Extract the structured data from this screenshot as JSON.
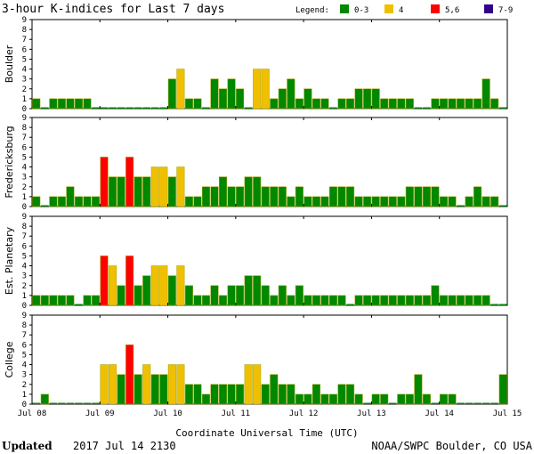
{
  "header": {
    "title": "3-hour K-indices for Last 7 days",
    "legend_title": "Legend:",
    "legend": [
      {
        "label": "0-3",
        "color": "#008800"
      },
      {
        "label": "4",
        "color": "#f0c000"
      },
      {
        "label": "5,6",
        "color": "#ff0000"
      },
      {
        "label": "7-9",
        "color": "#330088"
      }
    ]
  },
  "footer": {
    "updated_label": "Updated",
    "updated_value": "2017 Jul 14 2130",
    "credit": "NOAA/SWPC Boulder, CO USA"
  },
  "chart_data": {
    "type": "bar",
    "xlabel": "Coordinate Universal Time (UTC)",
    "x_ticks": [
      "Jul 08",
      "Jul 09",
      "Jul 10",
      "Jul 11",
      "Jul 12",
      "Jul 13",
      "Jul 14",
      "Jul 15"
    ],
    "y_ticks": [
      "0",
      "1",
      "2",
      "3",
      "4",
      "5",
      "6",
      "7",
      "8",
      "9"
    ],
    "ylim": [
      0,
      9
    ],
    "bins_per_day": 8,
    "color_scale": [
      {
        "range": "0-3",
        "color": "#008800"
      },
      {
        "range": "4",
        "color": "#f0c000"
      },
      {
        "range": "5,6",
        "color": "#ff0000"
      },
      {
        "range": "7-9",
        "color": "#330088"
      }
    ],
    "series": [
      {
        "name": "Boulder",
        "values": [
          1,
          0,
          1,
          1,
          1,
          1,
          1,
          0,
          0,
          0,
          0,
          0,
          0,
          0,
          0,
          0,
          3,
          4,
          1,
          1,
          0,
          3,
          2,
          3,
          2,
          0,
          4,
          4,
          1,
          2,
          3,
          1,
          2,
          1,
          1,
          0,
          1,
          1,
          2,
          2,
          2,
          1,
          1,
          1,
          1,
          0,
          0,
          1,
          1,
          1,
          1,
          1,
          1,
          3,
          1,
          0
        ]
      },
      {
        "name": "Fredericksburg",
        "values": [
          1,
          0,
          1,
          1,
          2,
          1,
          1,
          1,
          5,
          3,
          3,
          5,
          3,
          3,
          4,
          4,
          3,
          4,
          1,
          1,
          2,
          2,
          3,
          2,
          2,
          3,
          3,
          2,
          2,
          2,
          1,
          2,
          1,
          1,
          1,
          2,
          2,
          2,
          1,
          1,
          1,
          1,
          1,
          1,
          2,
          2,
          2,
          2,
          1,
          1,
          0,
          1,
          2,
          1,
          1,
          0
        ]
      },
      {
        "name": "Est. Planetary",
        "values": [
          1,
          1,
          1,
          1,
          1,
          0,
          1,
          1,
          5,
          4,
          2,
          5,
          2,
          3,
          4,
          4,
          3,
          4,
          2,
          1,
          1,
          2,
          1,
          2,
          2,
          3,
          3,
          2,
          1,
          2,
          1,
          2,
          1,
          1,
          1,
          1,
          1,
          0,
          1,
          1,
          1,
          1,
          1,
          1,
          1,
          1,
          1,
          2,
          1,
          1,
          1,
          1,
          1,
          1,
          0,
          0
        ]
      },
      {
        "name": "College",
        "values": [
          0,
          1,
          0,
          0,
          0,
          0,
          0,
          0,
          4,
          4,
          3,
          6,
          3,
          4,
          3,
          3,
          4,
          4,
          2,
          2,
          1,
          2,
          2,
          2,
          2,
          4,
          4,
          2,
          3,
          2,
          2,
          1,
          1,
          2,
          1,
          1,
          2,
          2,
          1,
          0,
          1,
          1,
          0,
          1,
          1,
          3,
          1,
          0,
          1,
          1,
          0,
          0,
          0,
          0,
          0,
          3
        ]
      }
    ]
  }
}
